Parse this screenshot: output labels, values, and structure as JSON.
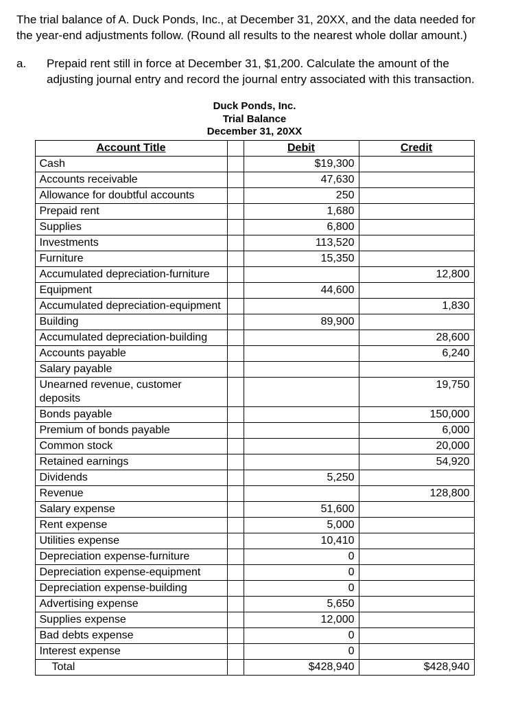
{
  "intro": "The trial balance of A. Duck Ponds, Inc., at December 31, 20XX, and the data needed for the year-end adjustments follow.  (Round all results to the nearest whole dollar amount.)",
  "question": {
    "letter": "a.",
    "text": "Prepaid rent still in force at December 31,  $1,200.  Calculate the amount of the adjusting journal entry and record the journal entry associated with this transaction."
  },
  "tb_header": {
    "company": "Duck Ponds, Inc.",
    "report": "Trial Balance",
    "date": "December 31, 20XX"
  },
  "columns": {
    "account": "Account Title",
    "debit": "Debit",
    "credit": "Credit"
  },
  "rows": [
    {
      "account": "Cash",
      "debit": "$19,300",
      "credit": ""
    },
    {
      "account": "Accounts receivable",
      "debit": "47,630",
      "credit": ""
    },
    {
      "account": "Allowance for doubtful accounts",
      "debit": "250",
      "credit": ""
    },
    {
      "account": "Prepaid rent",
      "debit": "1,680",
      "credit": ""
    },
    {
      "account": "Supplies",
      "debit": "6,800",
      "credit": ""
    },
    {
      "account": "Investments",
      "debit": "113,520",
      "credit": ""
    },
    {
      "account": "Furniture",
      "debit": "15,350",
      "credit": ""
    },
    {
      "account": "Accumulated depreciation-furniture",
      "debit": "",
      "credit": "12,800"
    },
    {
      "account": "Equipment",
      "debit": "44,600",
      "credit": ""
    },
    {
      "account": "Accumulated depreciation-equipment",
      "debit": "",
      "credit": "1,830"
    },
    {
      "account": "Building",
      "debit": "89,900",
      "credit": ""
    },
    {
      "account": "Accumulated depreciation-building",
      "debit": "",
      "credit": "28,600"
    },
    {
      "account": "Accounts payable",
      "debit": "",
      "credit": "6,240"
    },
    {
      "account": "Salary payable",
      "debit": "",
      "credit": ""
    },
    {
      "account": "Unearned revenue, customer deposits",
      "debit": "",
      "credit": "19,750"
    },
    {
      "account": "Bonds payable",
      "debit": "",
      "credit": "150,000"
    },
    {
      "account": "Premium of bonds payable",
      "debit": "",
      "credit": "6,000"
    },
    {
      "account": "Common stock",
      "debit": "",
      "credit": "20,000"
    },
    {
      "account": "Retained earnings",
      "debit": "",
      "credit": "54,920"
    },
    {
      "account": "Dividends",
      "debit": "5,250",
      "credit": ""
    },
    {
      "account": "Revenue",
      "debit": "",
      "credit": "128,800"
    },
    {
      "account": "Salary expense",
      "debit": "51,600",
      "credit": ""
    },
    {
      "account": "Rent expense",
      "debit": "5,000",
      "credit": ""
    },
    {
      "account": "Utilities expense",
      "debit": "10,410",
      "credit": ""
    },
    {
      "account": "Depreciation expense-furniture",
      "debit": "0",
      "credit": ""
    },
    {
      "account": "Depreciation expense-equipment",
      "debit": "0",
      "credit": ""
    },
    {
      "account": "Depreciation expense-building",
      "debit": "0",
      "credit": ""
    },
    {
      "account": "Advertising expense",
      "debit": "5,650",
      "credit": ""
    },
    {
      "account": "Supplies expense",
      "debit": "12,000",
      "credit": ""
    },
    {
      "account": "Bad debts expense",
      "debit": "0",
      "credit": ""
    },
    {
      "account": "Interest expense",
      "debit": "0",
      "credit": ""
    }
  ],
  "total": {
    "label": "Total",
    "debit": "$428,940",
    "credit": "$428,940"
  }
}
